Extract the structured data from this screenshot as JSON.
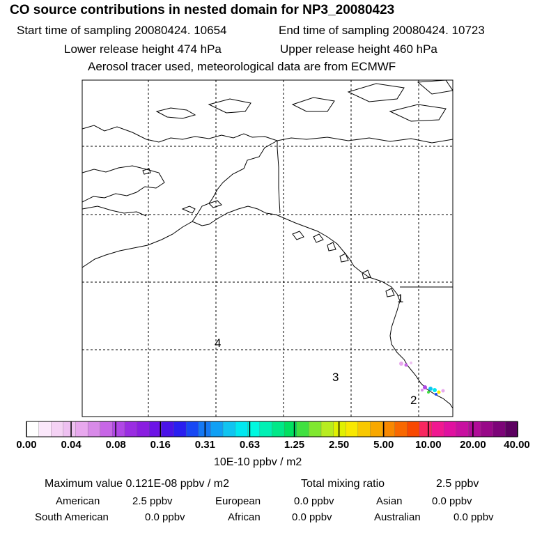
{
  "title": "CO  source contributions in nested domain for NP3_20080423",
  "sampling": {
    "start": "Start time of sampling 20080424. 10654",
    "end": "End time of sampling 20080424. 10723"
  },
  "release": {
    "lower": "Lower release height  474 hPa",
    "upper": "Upper release height  460 hPa"
  },
  "info": "Aerosol tracer used, meteorological data are from ECMWF",
  "map": {
    "region_labels": [
      "1",
      "2",
      "3",
      "4"
    ],
    "grid": true
  },
  "colorbar": {
    "colors": [
      "#ffffff",
      "#fbe8fb",
      "#f4d2f4",
      "#eec0f1",
      "#e8a8ee",
      "#d88ae8",
      "#c766e6",
      "#b047e6",
      "#9a2de2",
      "#8a1ee0",
      "#6c14e6",
      "#4a12e8",
      "#2a1ef0",
      "#1848f4",
      "#1478f4",
      "#10a0f4",
      "#10c4f0",
      "#00e8f0",
      "#00f8e0",
      "#00f0b4",
      "#00e888",
      "#00e060",
      "#40e040",
      "#80e830",
      "#b8ec20",
      "#e0f000",
      "#f8e800",
      "#f8c800",
      "#f8a800",
      "#f88800",
      "#f86800",
      "#f84800",
      "#f82860",
      "#f01890",
      "#e010a0",
      "#c810a0",
      "#b00c98",
      "#980888",
      "#7c0478",
      "#5c0060"
    ],
    "tick_labels": [
      "0.00",
      "0.04",
      "0.08",
      "0.16",
      "0.31",
      "0.63",
      "1.25",
      "2.50",
      "5.00",
      "10.00",
      "20.00",
      "40.00"
    ],
    "unit": "10E-10 ppbv / m2"
  },
  "stats": {
    "max_label": "Maximum value  0.121E-08 ppbv / m2",
    "total_label": "Total mixing ratio",
    "total_value": "2.5 ppbv",
    "regions": [
      {
        "name": "American",
        "value": "2.5 ppbv"
      },
      {
        "name": "European",
        "value": "0.0 ppbv"
      },
      {
        "name": "Asian",
        "value": "0.0 ppbv"
      },
      {
        "name": "South American",
        "value": "0.0 ppbv"
      },
      {
        "name": "African",
        "value": "0.0 ppbv"
      },
      {
        "name": "Australian",
        "value": "0.0 ppbv"
      }
    ]
  }
}
